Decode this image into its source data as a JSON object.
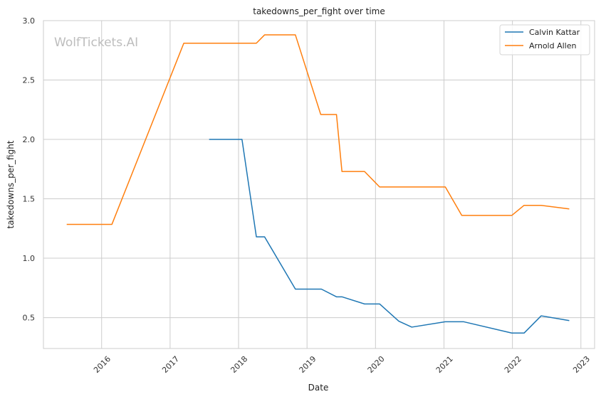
{
  "chart_data": {
    "type": "line",
    "title": "takedowns_per_fight over time",
    "xlabel": "Date",
    "ylabel": "takedowns_per_fight",
    "watermark": "WolfTickets.AI",
    "xlim": [
      2015.15,
      2023.2
    ],
    "ylim": [
      0.24,
      3.0
    ],
    "x_ticks": [
      2016,
      2017,
      2018,
      2019,
      2020,
      2021,
      2022,
      2023
    ],
    "x_tick_labels": [
      "2016",
      "2017",
      "2018",
      "2019",
      "2020",
      "2021",
      "2022",
      "2023"
    ],
    "y_ticks": [
      0.5,
      1.0,
      1.5,
      2.0,
      2.5,
      3.0
    ],
    "y_tick_labels": [
      "0.5",
      "1.0",
      "1.5",
      "2.0",
      "2.5",
      "3.0"
    ],
    "grid": true,
    "legend_position": "top-right",
    "series": [
      {
        "name": "Calvin Kattar",
        "color": "#1f77b4",
        "points": [
          [
            2017.57,
            2.0
          ],
          [
            2018.05,
            2.0
          ],
          [
            2018.26,
            1.18
          ],
          [
            2018.38,
            1.18
          ],
          [
            2018.83,
            0.74
          ],
          [
            2019.21,
            0.74
          ],
          [
            2019.43,
            0.675
          ],
          [
            2019.51,
            0.675
          ],
          [
            2019.84,
            0.615
          ],
          [
            2020.06,
            0.615
          ],
          [
            2020.34,
            0.47
          ],
          [
            2020.53,
            0.42
          ],
          [
            2021.02,
            0.465
          ],
          [
            2021.29,
            0.465
          ],
          [
            2021.99,
            0.37
          ],
          [
            2022.17,
            0.37
          ],
          [
            2022.42,
            0.515
          ],
          [
            2022.83,
            0.475
          ]
        ]
      },
      {
        "name": "Arnold Allen",
        "color": "#ff7f0e",
        "points": [
          [
            2015.49,
            1.285
          ],
          [
            2016.15,
            1.285
          ],
          [
            2017.2,
            2.81
          ],
          [
            2018.26,
            2.81
          ],
          [
            2018.38,
            2.88
          ],
          [
            2018.83,
            2.88
          ],
          [
            2019.2,
            2.21
          ],
          [
            2019.43,
            2.21
          ],
          [
            2019.51,
            1.73
          ],
          [
            2019.84,
            1.73
          ],
          [
            2020.06,
            1.6
          ],
          [
            2021.02,
            1.6
          ],
          [
            2021.26,
            1.36
          ],
          [
            2021.99,
            1.36
          ],
          [
            2022.17,
            1.445
          ],
          [
            2022.42,
            1.445
          ],
          [
            2022.83,
            1.415
          ]
        ]
      }
    ]
  }
}
